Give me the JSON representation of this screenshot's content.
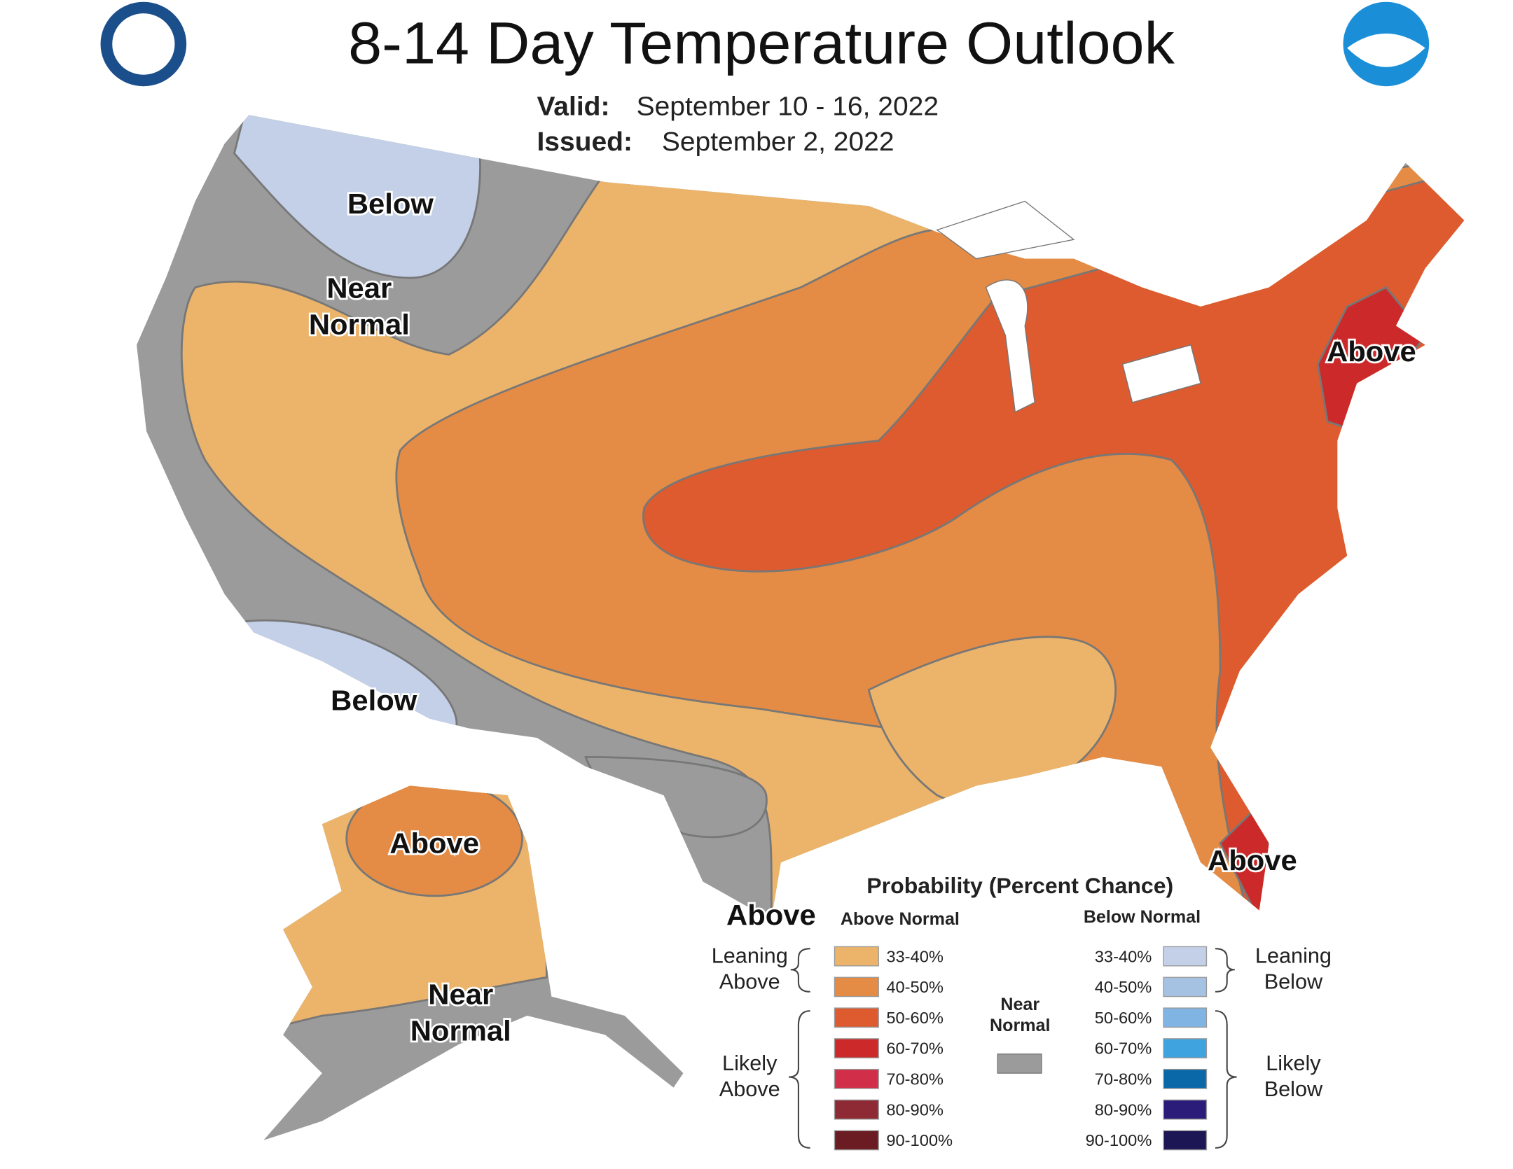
{
  "header": {
    "title": "8-14 Day Temperature Outlook",
    "valid_label": "Valid:",
    "valid": "September 10 - 16, 2022",
    "issued_label": "Issued:",
    "issued": "September 2, 2022"
  },
  "map_labels": [
    [
      "Below"
    ],
    [
      "Near",
      "Normal"
    ],
    [
      "Above"
    ],
    [
      "Below"
    ],
    [
      "Above"
    ],
    [
      "Above"
    ],
    [
      "Above"
    ],
    [
      "Near",
      "Normal"
    ]
  ],
  "legend": {
    "title": "Probability (Percent Chance)",
    "above": {
      "header": "Above Normal",
      "bins": [
        {
          "label": "33-40%",
          "color": "#ebb46a"
        },
        {
          "label": "40-50%",
          "color": "#e48b45"
        },
        {
          "label": "50-60%",
          "color": "#dd5b2e"
        },
        {
          "label": "60-70%",
          "color": "#cc2a2a"
        },
        {
          "label": "70-80%",
          "color": "#d12e49"
        },
        {
          "label": "80-90%",
          "color": "#8e2a33"
        },
        {
          "label": "90-100%",
          "color": "#6b1c22"
        }
      ]
    },
    "below": {
      "header": "Below Normal",
      "bins": [
        {
          "label": "33-40%",
          "color": "#c3d0e8"
        },
        {
          "label": "40-50%",
          "color": "#a6c2e2"
        },
        {
          "label": "50-60%",
          "color": "#80b5e3"
        },
        {
          "label": "60-70%",
          "color": "#3ea3de"
        },
        {
          "label": "70-80%",
          "color": "#0a67a8"
        },
        {
          "label": "80-90%",
          "color": "#2a1c78"
        },
        {
          "label": "90-100%",
          "color": "#1d1654"
        }
      ]
    },
    "near": {
      "label": [
        "Near",
        "Normal"
      ],
      "color": "#9b9b9b"
    },
    "groups": {
      "leaning_above": [
        "Leaning",
        "Above"
      ],
      "likely_above": [
        "Likely",
        "Above"
      ],
      "leaning_below": [
        "Leaning",
        "Below"
      ],
      "likely_below": [
        "Likely",
        "Below"
      ]
    }
  }
}
